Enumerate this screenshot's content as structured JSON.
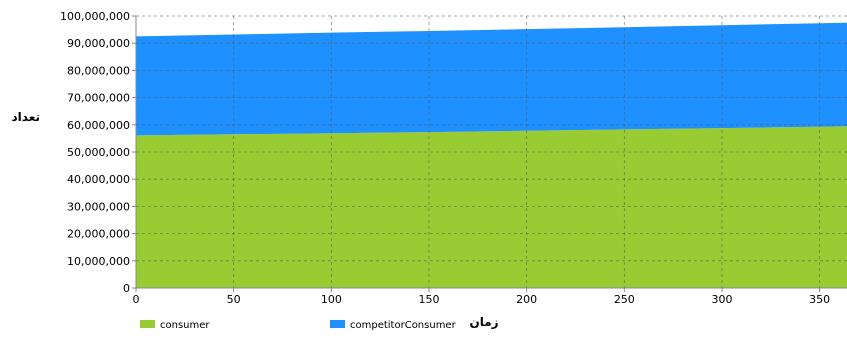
{
  "chart_data": {
    "type": "area",
    "stacked": true,
    "xlabel": "زمان",
    "ylabel": "تعداد",
    "xlim": [
      0,
      364
    ],
    "ylim": [
      0,
      100000000
    ],
    "x_ticks": [
      0,
      50,
      100,
      150,
      200,
      250,
      300,
      350
    ],
    "y_ticks": [
      0,
      10000000,
      20000000,
      30000000,
      40000000,
      50000000,
      60000000,
      70000000,
      80000000,
      90000000,
      100000000
    ],
    "y_tick_labels": [
      "0",
      "10,000,000",
      "20,000,000",
      "30,000,000",
      "40,000,000",
      "50,000,000",
      "60,000,000",
      "70,000,000",
      "80,000,000",
      "90,000,000",
      "100,000,000"
    ],
    "x": [
      0,
      50,
      100,
      150,
      200,
      250,
      300,
      350,
      364
    ],
    "series": [
      {
        "name": "consumer",
        "color": "#99cc33",
        "values": [
          56100000,
          56500000,
          56900000,
          57300000,
          57800000,
          58300000,
          58800000,
          59300000,
          59500000
        ]
      },
      {
        "name": "competitorConsumer",
        "color": "#1e90ff",
        "values": [
          36400000,
          36700000,
          37000000,
          37200000,
          37400000,
          37600000,
          37800000,
          38000000,
          38000000
        ]
      }
    ],
    "grid": true,
    "legend": "bottom-left",
    "legend_labels": [
      "consumer",
      "competitorConsumer"
    ]
  }
}
